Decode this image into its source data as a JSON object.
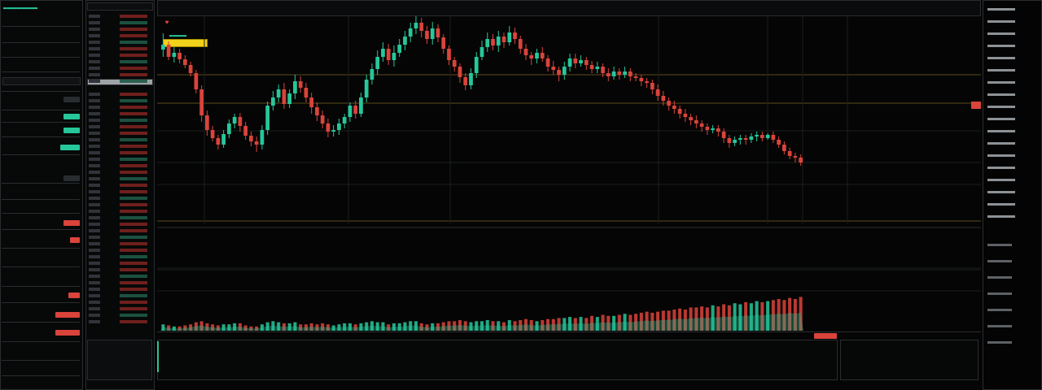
{
  "colors": {
    "up": "#27c79a",
    "down": "#d9443b",
    "accent_yellow": "#f2d21b",
    "panel_border": "#2a2d30"
  },
  "chart_data": {
    "type": "candlestick",
    "candles": [
      [
        209,
        215,
        229,
        200
      ],
      [
        215,
        200,
        219,
        196
      ],
      [
        200,
        205,
        212,
        193
      ],
      [
        205,
        197,
        210,
        192
      ],
      [
        197,
        190,
        202,
        186
      ],
      [
        190,
        180,
        194,
        176
      ],
      [
        180,
        160,
        184,
        155
      ],
      [
        160,
        128,
        165,
        120
      ],
      [
        128,
        110,
        134,
        103
      ],
      [
        110,
        100,
        115,
        96
      ],
      [
        100,
        92,
        104,
        86
      ],
      [
        92,
        105,
        110,
        88
      ],
      [
        105,
        118,
        123,
        100
      ],
      [
        118,
        126,
        130,
        112
      ],
      [
        126,
        115,
        131,
        108
      ],
      [
        115,
        103,
        120,
        98
      ],
      [
        103,
        96,
        108,
        90
      ],
      [
        96,
        92,
        102,
        83
      ],
      [
        92,
        110,
        116,
        86
      ],
      [
        110,
        140,
        145,
        104
      ],
      [
        140,
        150,
        158,
        134
      ],
      [
        150,
        160,
        166,
        144
      ],
      [
        160,
        142,
        168,
        136
      ],
      [
        142,
        155,
        160,
        137
      ],
      [
        155,
        170,
        178,
        148
      ],
      [
        170,
        162,
        176,
        156
      ],
      [
        162,
        150,
        168,
        144
      ],
      [
        150,
        138,
        156,
        130
      ],
      [
        138,
        128,
        144,
        121
      ],
      [
        128,
        118,
        134,
        112
      ],
      [
        118,
        108,
        124,
        101
      ],
      [
        108,
        110,
        116,
        102
      ],
      [
        110,
        118,
        124,
        104
      ],
      [
        118,
        126,
        130,
        112
      ],
      [
        126,
        140,
        144,
        120
      ],
      [
        140,
        130,
        146,
        124
      ],
      [
        130,
        150,
        156,
        126
      ],
      [
        150,
        172,
        178,
        144
      ],
      [
        172,
        185,
        192,
        166
      ],
      [
        185,
        200,
        208,
        178
      ],
      [
        200,
        210,
        218,
        194
      ],
      [
        210,
        196,
        216,
        190
      ],
      [
        196,
        205,
        214,
        188
      ],
      [
        205,
        215,
        222,
        200
      ],
      [
        215,
        225,
        232,
        208
      ],
      [
        225,
        235,
        242,
        218
      ],
      [
        235,
        242,
        250,
        228
      ],
      [
        242,
        232,
        248,
        224
      ],
      [
        232,
        222,
        238,
        216
      ],
      [
        222,
        235,
        243,
        215
      ],
      [
        235,
        224,
        240,
        218
      ],
      [
        224,
        210,
        228,
        204
      ],
      [
        210,
        196,
        214,
        190
      ],
      [
        196,
        188,
        200,
        182
      ],
      [
        188,
        175,
        192,
        168
      ],
      [
        175,
        165,
        180,
        159
      ],
      [
        165,
        180,
        186,
        160
      ],
      [
        180,
        200,
        206,
        174
      ],
      [
        200,
        212,
        220,
        196
      ],
      [
        212,
        222,
        230,
        206
      ],
      [
        222,
        214,
        228,
        208
      ],
      [
        214,
        225,
        232,
        206
      ],
      [
        225,
        218,
        230,
        211
      ],
      [
        218,
        230,
        238,
        214
      ],
      [
        230,
        222,
        236,
        216
      ],
      [
        222,
        210,
        226,
        204
      ],
      [
        210,
        202,
        216,
        196
      ],
      [
        202,
        198,
        206,
        190
      ],
      [
        198,
        205,
        210,
        192
      ],
      [
        205,
        198,
        212,
        194
      ],
      [
        198,
        188,
        202,
        182
      ],
      [
        188,
        184,
        195,
        178
      ],
      [
        184,
        178,
        188,
        170
      ],
      [
        178,
        188,
        194,
        172
      ],
      [
        188,
        198,
        204,
        182
      ],
      [
        198,
        192,
        204,
        186
      ],
      [
        192,
        196,
        202,
        188
      ],
      [
        196,
        190,
        200,
        184
      ],
      [
        190,
        185,
        195,
        180
      ],
      [
        185,
        188,
        194,
        180
      ],
      [
        188,
        180,
        192,
        175
      ],
      [
        180,
        176,
        186,
        170
      ],
      [
        176,
        182,
        188,
        172
      ],
      [
        182,
        178,
        186,
        172
      ],
      [
        178,
        182,
        188,
        174
      ],
      [
        182,
        176,
        186,
        170
      ],
      [
        176,
        174,
        180,
        170
      ],
      [
        174,
        170,
        178,
        164
      ],
      [
        170,
        168,
        174,
        162
      ],
      [
        168,
        160,
        172,
        154
      ],
      [
        160,
        152,
        166,
        146
      ],
      [
        152,
        146,
        158,
        140
      ],
      [
        146,
        140,
        150,
        134
      ],
      [
        140,
        136,
        146,
        130
      ],
      [
        136,
        130,
        140,
        124
      ],
      [
        130,
        126,
        136,
        120
      ],
      [
        126,
        122,
        130,
        116
      ],
      [
        122,
        118,
        128,
        112
      ],
      [
        118,
        114,
        122,
        108
      ],
      [
        114,
        110,
        118,
        104
      ],
      [
        110,
        112,
        116,
        106
      ],
      [
        112,
        108,
        116,
        102
      ],
      [
        108,
        100,
        112,
        94
      ],
      [
        100,
        94,
        104,
        88
      ],
      [
        94,
        98,
        102,
        90
      ],
      [
        98,
        100,
        104,
        92
      ],
      [
        100,
        98,
        104,
        92
      ],
      [
        98,
        102,
        106,
        94
      ],
      [
        102,
        104,
        108,
        96
      ],
      [
        104,
        100,
        108,
        96
      ],
      [
        100,
        104,
        106,
        98
      ],
      [
        104,
        98,
        108,
        94
      ],
      [
        98,
        92,
        102,
        88
      ],
      [
        92,
        84,
        96,
        80
      ],
      [
        84,
        78,
        88,
        74
      ],
      [
        78,
        76,
        82,
        70
      ],
      [
        76,
        70,
        80,
        66
      ]
    ],
    "volumes": [
      6,
      5,
      4,
      4,
      5,
      6,
      8,
      9,
      7,
      6,
      5,
      6,
      6,
      7,
      7,
      5,
      4,
      4,
      6,
      8,
      9,
      8,
      7,
      7,
      8,
      6,
      6,
      7,
      6,
      7,
      6,
      5,
      6,
      7,
      7,
      6,
      7,
      8,
      9,
      8,
      8,
      6,
      7,
      7,
      8,
      9,
      9,
      7,
      6,
      7,
      7,
      8,
      9,
      9,
      10,
      9,
      8,
      9,
      9,
      10,
      9,
      9,
      8,
      10,
      9,
      10,
      11,
      10,
      9,
      10,
      11,
      11,
      12,
      12,
      13,
      12,
      13,
      12,
      14,
      13,
      15,
      14,
      14,
      15,
      16,
      15,
      16,
      17,
      18,
      17,
      18,
      19,
      19,
      20,
      21,
      20,
      22,
      22,
      23,
      22,
      24,
      23,
      25,
      24,
      26,
      25,
      27,
      26,
      28,
      27,
      28,
      29,
      30,
      29,
      31,
      30,
      32
    ]
  }
}
